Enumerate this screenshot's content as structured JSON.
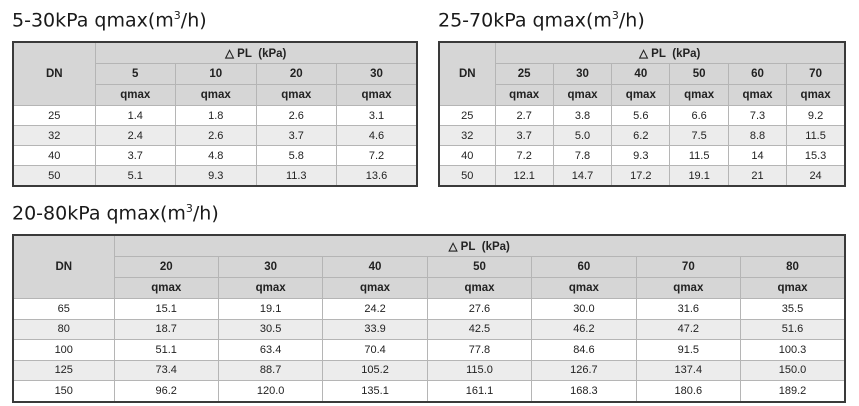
{
  "tables": [
    {
      "title_main": "5-30kPa qmax(m",
      "title_sup": "3",
      "title_tail": "/h)",
      "dn_label": "DN",
      "group_label": "△ PL  (kPa)",
      "pressures": [
        "5",
        "10",
        "20",
        "30"
      ],
      "qmax_label": "qmax",
      "rows": [
        {
          "dn": "25",
          "values": [
            "1.4",
            "1.8",
            "2.6",
            "3.1"
          ]
        },
        {
          "dn": "32",
          "values": [
            "2.4",
            "2.6",
            "3.7",
            "4.6"
          ]
        },
        {
          "dn": "40",
          "values": [
            "3.7",
            "4.8",
            "5.8",
            "7.2"
          ]
        },
        {
          "dn": "50",
          "values": [
            "5.1",
            "9.3",
            "11.3",
            "13.6"
          ]
        }
      ]
    },
    {
      "title_main": "25-70kPa qmax(m",
      "title_sup": "3",
      "title_tail": "/h)",
      "dn_label": "DN",
      "group_label": "△ PL  (kPa)",
      "pressures": [
        "25",
        "30",
        "40",
        "50",
        "60",
        "70"
      ],
      "qmax_label": "qmax",
      "rows": [
        {
          "dn": "25",
          "values": [
            "2.7",
            "3.8",
            "5.6",
            "6.6",
            "7.3",
            "9.2"
          ]
        },
        {
          "dn": "32",
          "values": [
            "3.7",
            "5.0",
            "6.2",
            "7.5",
            "8.8",
            "11.5"
          ]
        },
        {
          "dn": "40",
          "values": [
            "7.2",
            "7.8",
            "9.3",
            "11.5",
            "14",
            "15.3"
          ]
        },
        {
          "dn": "50",
          "values": [
            "12.1",
            "14.7",
            "17.2",
            "19.1",
            "21",
            "24"
          ]
        }
      ]
    },
    {
      "title_main": "20-80kPa qmax(m",
      "title_sup": "3",
      "title_tail": "/h)",
      "dn_label": "DN",
      "group_label": "△ PL  (kPa)",
      "pressures": [
        "20",
        "30",
        "40",
        "50",
        "60",
        "70",
        "80"
      ],
      "qmax_label": "qmax",
      "rows": [
        {
          "dn": "65",
          "values": [
            "15.1",
            "19.1",
            "24.2",
            "27.6",
            "30.0",
            "31.6",
            "35.5"
          ]
        },
        {
          "dn": "80",
          "values": [
            "18.7",
            "30.5",
            "33.9",
            "42.5",
            "46.2",
            "47.2",
            "51.6"
          ]
        },
        {
          "dn": "100",
          "values": [
            "51.1",
            "63.4",
            "70.4",
            "77.8",
            "84.6",
            "91.5",
            "100.3"
          ]
        },
        {
          "dn": "125",
          "values": [
            "73.4",
            "88.7",
            "105.2",
            "115.0",
            "126.7",
            "137.4",
            "150.0"
          ]
        },
        {
          "dn": "150",
          "values": [
            "96.2",
            "120.0",
            "135.1",
            "161.1",
            "168.3",
            "180.6",
            "189.2"
          ]
        }
      ]
    }
  ]
}
